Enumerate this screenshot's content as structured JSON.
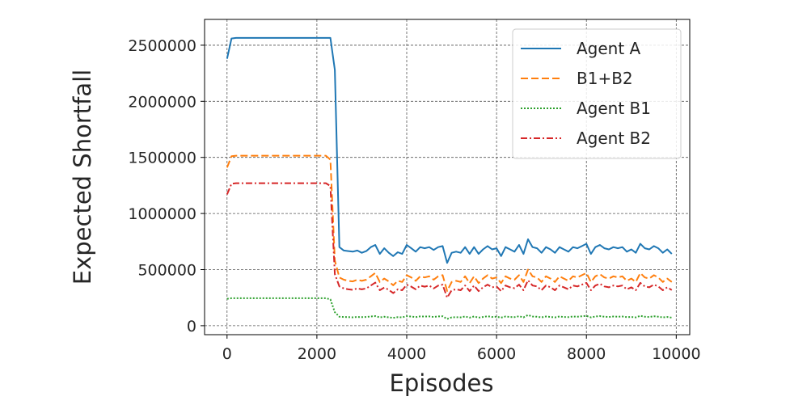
{
  "chart_data": {
    "type": "line",
    "title": "",
    "xlabel": "Episodes",
    "ylabel": "Expected Shortfall",
    "xlim": [
      -500,
      10300
    ],
    "ylim": [
      -80000,
      2730000
    ],
    "xticks": [
      0,
      2000,
      4000,
      6000,
      8000,
      10000
    ],
    "yticks": [
      0,
      500000,
      1000000,
      1500000,
      2000000,
      2500000
    ],
    "grid": true,
    "legend_position": "top-right",
    "x": [
      0,
      100,
      200,
      300,
      400,
      500,
      600,
      700,
      800,
      900,
      1000,
      1100,
      1200,
      1300,
      1400,
      1500,
      1600,
      1700,
      1800,
      1900,
      2000,
      2100,
      2200,
      2300,
      2400,
      2500,
      2600,
      2700,
      2800,
      2900,
      3000,
      3100,
      3200,
      3300,
      3400,
      3500,
      3600,
      3700,
      3800,
      3900,
      4000,
      4100,
      4200,
      4300,
      4400,
      4500,
      4600,
      4700,
      4800,
      4900,
      5000,
      5100,
      5200,
      5300,
      5400,
      5500,
      5600,
      5700,
      5800,
      5900,
      6000,
      6100,
      6200,
      6300,
      6400,
      6500,
      6600,
      6700,
      6800,
      6900,
      7000,
      7100,
      7200,
      7300,
      7400,
      7500,
      7600,
      7700,
      7800,
      7900,
      8000,
      8100,
      8200,
      8300,
      8400,
      8500,
      8600,
      8700,
      8800,
      8900,
      9000,
      9100,
      9200,
      9300,
      9400,
      9500,
      9600,
      9700,
      9800,
      9900
    ],
    "series": [
      {
        "name": "Agent A",
        "color": "#1f77b4",
        "dash": "",
        "values": [
          2380000,
          2560000,
          2565000,
          2565000,
          2565000,
          2565000,
          2565000,
          2565000,
          2565000,
          2565000,
          2565000,
          2565000,
          2565000,
          2565000,
          2565000,
          2565000,
          2565000,
          2565000,
          2565000,
          2565000,
          2565000,
          2565000,
          2565000,
          2565000,
          2280000,
          700000,
          670000,
          665000,
          660000,
          670000,
          650000,
          665000,
          700000,
          720000,
          640000,
          690000,
          650000,
          620000,
          655000,
          640000,
          720000,
          690000,
          660000,
          700000,
          690000,
          700000,
          675000,
          700000,
          710000,
          560000,
          650000,
          660000,
          650000,
          700000,
          640000,
          700000,
          640000,
          680000,
          710000,
          680000,
          690000,
          620000,
          700000,
          680000,
          660000,
          720000,
          640000,
          770000,
          700000,
          690000,
          650000,
          700000,
          680000,
          650000,
          700000,
          680000,
          660000,
          700000,
          690000,
          710000,
          730000,
          640000,
          700000,
          720000,
          690000,
          680000,
          700000,
          690000,
          700000,
          660000,
          680000,
          650000,
          730000,
          690000,
          680000,
          710000,
          690000,
          650000,
          680000,
          640000
        ]
      },
      {
        "name": "B1+B2",
        "color": "#ff7f0e",
        "dash": "9,4",
        "values": [
          1410000,
          1510000,
          1515000,
          1515000,
          1515000,
          1515000,
          1515000,
          1515000,
          1515000,
          1515000,
          1515000,
          1515000,
          1515000,
          1515000,
          1515000,
          1515000,
          1515000,
          1515000,
          1515000,
          1515000,
          1515000,
          1515000,
          1515000,
          1480000,
          580000,
          430000,
          410000,
          400000,
          395000,
          410000,
          400000,
          410000,
          440000,
          470000,
          390000,
          420000,
          395000,
          360000,
          400000,
          390000,
          450000,
          430000,
          400000,
          440000,
          430000,
          440000,
          410000,
          440000,
          450000,
          310000,
          390000,
          400000,
          390000,
          440000,
          380000,
          440000,
          380000,
          420000,
          450000,
          420000,
          430000,
          380000,
          440000,
          420000,
          410000,
          450000,
          390000,
          500000,
          440000,
          430000,
          390000,
          440000,
          420000,
          390000,
          440000,
          420000,
          400000,
          440000,
          430000,
          450000,
          470000,
          390000,
          440000,
          460000,
          430000,
          420000,
          440000,
          430000,
          440000,
          400000,
          420000,
          390000,
          470000,
          430000,
          420000,
          450000,
          430000,
          390000,
          420000,
          390000
        ]
      },
      {
        "name": "Agent B1",
        "color": "#2ca02c",
        "dash": "2,2",
        "values": [
          240000,
          245000,
          245000,
          245000,
          245000,
          245000,
          245000,
          245000,
          245000,
          245000,
          245000,
          245000,
          245000,
          245000,
          245000,
          245000,
          245000,
          245000,
          245000,
          245000,
          245000,
          245000,
          245000,
          235000,
          120000,
          80000,
          78000,
          76000,
          75000,
          78000,
          76000,
          78000,
          82000,
          86000,
          74000,
          80000,
          75000,
          70000,
          76000,
          74000,
          85000,
          82000,
          76000,
          83000,
          82000,
          83000,
          78000,
          83000,
          84000,
          60000,
          74000,
          76000,
          74000,
          82000,
          72000,
          82000,
          72000,
          78000,
          84000,
          78000,
          80000,
          72000,
          82000,
          78000,
          76000,
          84000,
          74000,
          95000,
          82000,
          80000,
          74000,
          82000,
          78000,
          74000,
          82000,
          78000,
          76000,
          82000,
          80000,
          84000,
          88000,
          74000,
          82000,
          86000,
          80000,
          78000,
          82000,
          80000,
          82000,
          76000,
          78000,
          74000,
          88000,
          80000,
          78000,
          84000,
          80000,
          74000,
          78000,
          72000
        ]
      },
      {
        "name": "Agent B2",
        "color": "#d62728",
        "dash": "8,3,2,3",
        "values": [
          1170000,
          1265000,
          1270000,
          1270000,
          1270000,
          1270000,
          1270000,
          1270000,
          1270000,
          1270000,
          1270000,
          1270000,
          1270000,
          1270000,
          1270000,
          1270000,
          1270000,
          1270000,
          1270000,
          1270000,
          1270000,
          1270000,
          1270000,
          1245000,
          460000,
          350000,
          332000,
          324000,
          320000,
          332000,
          324000,
          332000,
          358000,
          384000,
          316000,
          340000,
          320000,
          290000,
          324000,
          316000,
          365000,
          348000,
          324000,
          357000,
          348000,
          357000,
          332000,
          357000,
          366000,
          250000,
          316000,
          324000,
          316000,
          358000,
          308000,
          358000,
          308000,
          342000,
          366000,
          342000,
          350000,
          308000,
          358000,
          342000,
          334000,
          366000,
          316000,
          405000,
          358000,
          350000,
          316000,
          358000,
          342000,
          316000,
          358000,
          342000,
          324000,
          358000,
          350000,
          366000,
          382000,
          316000,
          358000,
          374000,
          350000,
          342000,
          358000,
          350000,
          358000,
          324000,
          342000,
          316000,
          382000,
          350000,
          342000,
          366000,
          350000,
          316000,
          342000,
          318000
        ]
      }
    ]
  }
}
